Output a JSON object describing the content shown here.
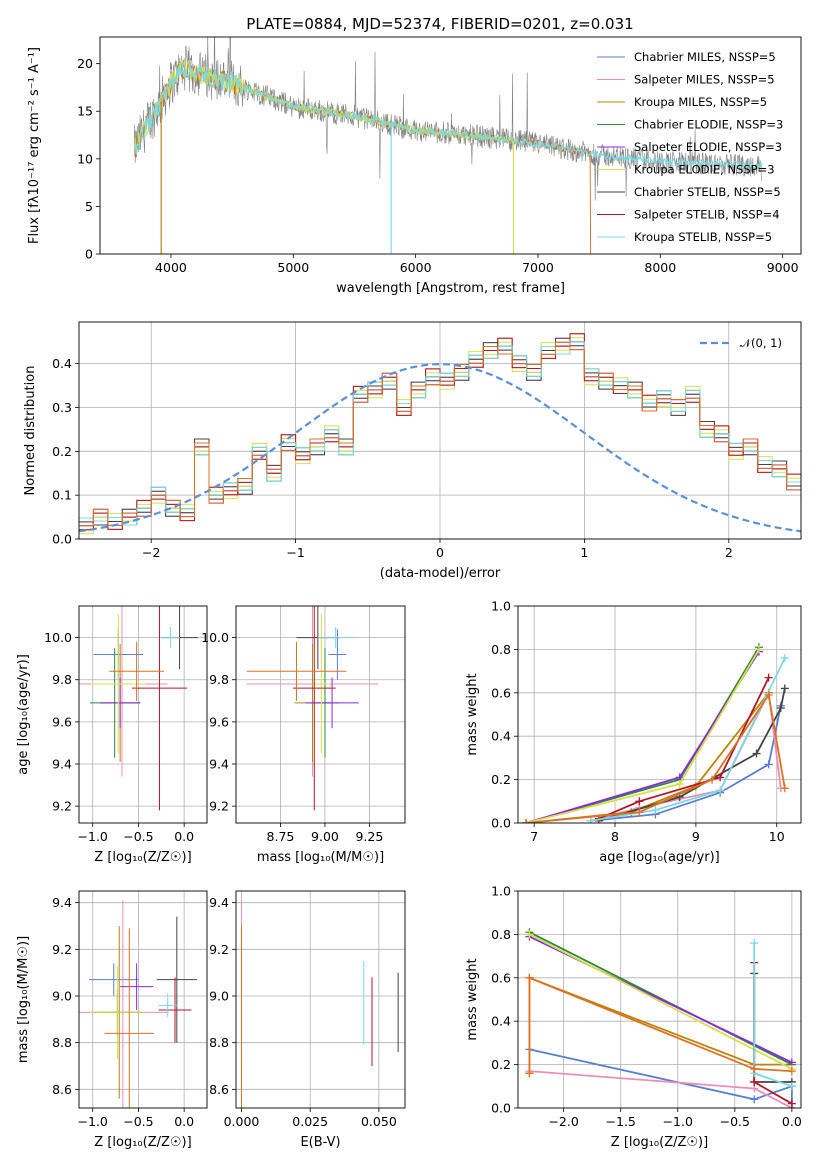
{
  "figure_title": "PLATE=0884, MJD=52374, FIBERID=0201, z=0.031",
  "colors": {
    "Chabrier MILES": "#5a7fd0",
    "Salpeter MILES": "#e88fb9",
    "Kroupa MILES": "#b8860b",
    "Chabrier ELODIE": "#2e8b3a",
    "Salpeter ELODIE": "#8a2be2",
    "Kroupa ELODIE": "#d4e04a",
    "Chabrier STELIB": "#444444",
    "Salpeter STELIB": "#b2182b",
    "Kroupa STELIB": "#7fd8e0",
    "orange": "#e07020",
    "data": "#808080",
    "model": "#d2691e",
    "gaussian": "#5b8fd6",
    "grid": "#b0b0b0"
  },
  "chart_data": [
    {
      "id": "spectrum",
      "type": "line",
      "xlabel": "wavelength [Angstrom, rest frame]",
      "ylabel": "Flux [fλ10⁻¹⁷ erg cm⁻² s⁻¹ A⁻¹]",
      "xlim": [
        3420,
        9150
      ],
      "ylim": [
        0,
        22.8
      ],
      "xticks": [
        4000,
        5000,
        6000,
        7000,
        8000,
        9000
      ],
      "yticks": [
        0,
        5,
        10,
        15,
        20
      ],
      "grid": false,
      "legend_position": "top-right",
      "legend": [
        "Chabrier MILES, N_SSP=5",
        "Salpeter MILES, N_SSP=5",
        "Kroupa MILES, N_SSP=5",
        "Chabrier ELODIE, N_SSP=3",
        "Salpeter ELODIE, N_SSP=3",
        "Kroupa ELODIE, N_SSP=3",
        "Chabrier STELIB, N_SSP=5",
        "Salpeter STELIB, N_SSP=4",
        "Kroupa STELIB, N_SSP=5"
      ],
      "continuum": [
        [
          3700,
          11.0
        ],
        [
          3800,
          13.5
        ],
        [
          3900,
          15.5
        ],
        [
          4000,
          18.0
        ],
        [
          4100,
          19.5
        ],
        [
          4300,
          18.6
        ],
        [
          4500,
          18.0
        ],
        [
          4700,
          17.0
        ],
        [
          5000,
          15.5
        ],
        [
          5500,
          14.5
        ],
        [
          6000,
          13.0
        ],
        [
          6500,
          12.4
        ],
        [
          7000,
          11.6
        ],
        [
          7500,
          10.4
        ],
        [
          8000,
          9.7
        ],
        [
          8500,
          9.4
        ],
        [
          8800,
          9.3
        ]
      ],
      "model_range": [
        3700,
        7430
      ],
      "data_range": [
        3700,
        8830
      ]
    },
    {
      "id": "residuals",
      "type": "bar",
      "xlabel": "(data-model)/error",
      "ylabel": "Normed distribution",
      "xlim": [
        -2.5,
        2.5
      ],
      "ylim": [
        0,
        0.495
      ],
      "xticks": [
        -2,
        -1,
        0,
        1,
        2
      ],
      "yticks": [
        0.0,
        0.1,
        0.2,
        0.3,
        0.4
      ],
      "grid": true,
      "legend_position": "top-right",
      "legend": [
        "𝒩(0, 1)"
      ],
      "bin_width": 0.1,
      "x_start": -2.5,
      "hist_values": [
        0.03,
        0.05,
        0.04,
        0.05,
        0.07,
        0.1,
        0.07,
        0.06,
        0.21,
        0.1,
        0.11,
        0.12,
        0.2,
        0.15,
        0.22,
        0.19,
        0.21,
        0.24,
        0.21,
        0.33,
        0.34,
        0.36,
        0.3,
        0.34,
        0.37,
        0.36,
        0.38,
        0.41,
        0.43,
        0.44,
        0.4,
        0.38,
        0.43,
        0.44,
        0.45,
        0.37,
        0.36,
        0.35,
        0.34,
        0.31,
        0.32,
        0.3,
        0.33,
        0.25,
        0.24,
        0.2,
        0.21,
        0.17,
        0.16,
        0.13,
        0.1,
        0.12,
        0.1,
        0.09,
        0.06,
        0.05,
        0.04,
        0.03,
        0.04,
        0.02
      ],
      "gaussian": {
        "mean": 0,
        "sigma": 1
      }
    },
    {
      "id": "age_vs_Z",
      "type": "scatter",
      "xlabel": "Z [log₁₀(Z/Z☉)]",
      "ylabel": "age  [log₁₀(age/yr)]",
      "xlim": [
        -1.15,
        0.25
      ],
      "ylim": [
        9.12,
        10.15
      ],
      "xticks": [
        -1.0,
        -0.5,
        0.0
      ],
      "yticks": [
        9.2,
        9.4,
        9.6,
        9.8,
        10.0
      ],
      "grid": true,
      "points": [
        {
          "x": -0.72,
          "y": 9.92,
          "ex": 0.27,
          "ey": 0.12,
          "series": "Chabrier MILES"
        },
        {
          "x": -0.68,
          "y": 9.78,
          "ex": 0.5,
          "ey": 0.44,
          "series": "Salpeter MILES"
        },
        {
          "x": -0.7,
          "y": 9.69,
          "ex": 0.22,
          "ey": 0.28,
          "series": "Kroupa MILES"
        },
        {
          "x": -0.76,
          "y": 9.69,
          "ex": 0.27,
          "ey": 0.26,
          "series": "Chabrier ELODIE"
        },
        {
          "x": -0.7,
          "y": 9.69,
          "ex": 0.22,
          "ey": 0.12,
          "series": "Salpeter ELODIE"
        },
        {
          "x": -0.72,
          "y": 9.78,
          "ex": 0.3,
          "ey": 0.33,
          "series": "Kroupa ELODIE"
        },
        {
          "x": -0.05,
          "y": 10.0,
          "ex": 0.2,
          "ey": 0.15,
          "series": "Chabrier STELIB"
        },
        {
          "x": -0.27,
          "y": 9.76,
          "ex": 0.3,
          "ey": 0.58,
          "series": "Salpeter STELIB"
        },
        {
          "x": -0.15,
          "y": 10.0,
          "ex": 0.1,
          "ey": 0.05,
          "series": "Kroupa STELIB"
        },
        {
          "x": -0.52,
          "y": 9.84,
          "ex": 0.3,
          "ey": 0.14,
          "series": "orange"
        }
      ]
    },
    {
      "id": "age_vs_mass",
      "type": "scatter",
      "xlabel": "mass [log₁₀(M/M☉)]",
      "ylabel": "",
      "xlim": [
        8.5,
        9.45
      ],
      "ylim": [
        9.12,
        10.15
      ],
      "xticks": [
        8.75,
        9.0,
        9.25
      ],
      "yticks": [
        9.2,
        9.4,
        9.6,
        9.8,
        10.0
      ],
      "grid": true,
      "points": [
        {
          "x": 9.07,
          "y": 9.92,
          "ex": 0.05,
          "ey": 0.12,
          "series": "Chabrier MILES"
        },
        {
          "x": 8.93,
          "y": 9.78,
          "ex": 0.37,
          "ey": 0.44,
          "series": "Salpeter MILES"
        },
        {
          "x": 8.93,
          "y": 9.69,
          "ex": 0.1,
          "ey": 0.28,
          "series": "Kroupa MILES"
        },
        {
          "x": 9.0,
          "y": 9.69,
          "ex": 0.08,
          "ey": 0.26,
          "series": "Chabrier ELODIE"
        },
        {
          "x": 9.04,
          "y": 9.69,
          "ex": 0.15,
          "ey": 0.12,
          "series": "Salpeter ELODIE"
        },
        {
          "x": 8.98,
          "y": 9.78,
          "ex": 0.05,
          "ey": 0.33,
          "series": "Kroupa ELODIE"
        },
        {
          "x": 8.96,
          "y": 10.0,
          "ex": 0.12,
          "ey": 0.15,
          "series": "Chabrier STELIB"
        },
        {
          "x": 8.94,
          "y": 9.76,
          "ex": 0.12,
          "ey": 0.58,
          "series": "Salpeter STELIB"
        },
        {
          "x": 9.06,
          "y": 10.0,
          "ex": 0.1,
          "ey": 0.05,
          "series": "Kroupa STELIB"
        },
        {
          "x": 8.84,
          "y": 9.84,
          "ex": 0.28,
          "ey": 0.14,
          "series": "orange"
        }
      ]
    },
    {
      "id": "massweight_vs_age",
      "type": "line",
      "xlabel": "age  [log₁₀(age/yr)]",
      "ylabel": "mass weight",
      "xlim": [
        6.8,
        10.3
      ],
      "ylim": [
        0.0,
        1.0
      ],
      "xticks": [
        7,
        8,
        9,
        10
      ],
      "yticks": [
        0.0,
        0.2,
        0.4,
        0.6,
        0.8,
        1.0
      ],
      "grid": true,
      "series": [
        {
          "name": "Chabrier MILES",
          "x": [
            7.7,
            8.5,
            9.3,
            9.9,
            10.05
          ],
          "y": [
            0.01,
            0.04,
            0.14,
            0.27,
            0.54
          ]
        },
        {
          "name": "Salpeter MILES",
          "x": [
            7.7,
            8.3,
            9.3,
            9.9,
            10.05
          ],
          "y": [
            0.01,
            0.07,
            0.15,
            0.6,
            0.16
          ]
        },
        {
          "name": "Kroupa MILES",
          "x": [
            6.9,
            8.2,
            9.0,
            9.9
          ],
          "y": [
            0.0,
            0.05,
            0.17,
            0.6
          ]
        },
        {
          "name": "Chabrier ELODIE",
          "x": [
            6.9,
            8.8,
            9.78
          ],
          "y": [
            0.0,
            0.2,
            0.81
          ]
        },
        {
          "name": "Salpeter ELODIE",
          "x": [
            6.9,
            8.8,
            9.78
          ],
          "y": [
            0.0,
            0.21,
            0.79
          ]
        },
        {
          "name": "Kroupa ELODIE",
          "x": [
            6.9,
            8.8,
            9.78
          ],
          "y": [
            0.0,
            0.18,
            0.8
          ]
        },
        {
          "name": "Chabrier STELIB",
          "x": [
            7.8,
            8.8,
            9.75,
            10.05,
            10.1
          ],
          "y": [
            0.01,
            0.12,
            0.32,
            0.53,
            0.62
          ]
        },
        {
          "name": "Salpeter STELIB",
          "x": [
            7.8,
            8.3,
            9.3,
            9.9
          ],
          "y": [
            0.02,
            0.1,
            0.21,
            0.67
          ]
        },
        {
          "name": "Kroupa STELIB",
          "x": [
            7.7,
            8.5,
            9.3,
            10.1
          ],
          "y": [
            0.01,
            0.06,
            0.15,
            0.76
          ]
        },
        {
          "name": "orange",
          "x": [
            6.9,
            8.3,
            9.2,
            9.9,
            10.1
          ],
          "y": [
            0.0,
            0.05,
            0.2,
            0.59,
            0.16
          ]
        }
      ]
    },
    {
      "id": "mass_vs_Z",
      "type": "scatter",
      "xlabel": "Z [log₁₀(Z/Z☉)]",
      "ylabel": "mass [log₁₀(M/M☉)]",
      "xlim": [
        -1.15,
        0.25
      ],
      "ylim": [
        8.52,
        9.45
      ],
      "xticks": [
        -1.0,
        -0.5,
        0.0
      ],
      "yticks": [
        8.6,
        8.8,
        9.0,
        9.2,
        9.4
      ],
      "grid": true,
      "points": [
        {
          "x": -0.77,
          "y": 9.07,
          "ex": 0.27,
          "ey": 0.07,
          "series": "Chabrier MILES"
        },
        {
          "x": -0.67,
          "y": 8.93,
          "ex": 0.5,
          "ey": 0.48,
          "series": "Salpeter MILES"
        },
        {
          "x": -0.71,
          "y": 8.93,
          "ex": 0.22,
          "ey": 0.37,
          "series": "Kroupa MILES"
        },
        {
          "x": -0.73,
          "y": 8.93,
          "ex": 0.27,
          "ey": 0.1,
          "series": "Chabrier ELODIE"
        },
        {
          "x": -0.52,
          "y": 9.04,
          "ex": 0.18,
          "ey": 0.1,
          "series": "Salpeter ELODIE"
        },
        {
          "x": -0.73,
          "y": 8.93,
          "ex": 0.3,
          "ey": 0.2,
          "series": "Kroupa ELODIE"
        },
        {
          "x": -0.08,
          "y": 9.07,
          "ex": 0.22,
          "ey": 0.27,
          "series": "Chabrier STELIB"
        },
        {
          "x": -0.1,
          "y": 8.94,
          "ex": 0.18,
          "ey": 0.14,
          "series": "Salpeter STELIB"
        },
        {
          "x": -0.18,
          "y": 8.96,
          "ex": 0.1,
          "ey": 0.05,
          "series": "Kroupa STELIB"
        },
        {
          "x": -0.6,
          "y": 8.84,
          "ex": 0.27,
          "ey": 0.45,
          "series": "orange"
        }
      ]
    },
    {
      "id": "mass_vs_EBV",
      "type": "scatter",
      "xlabel": "E(B-V)",
      "ylabel": "",
      "xlim": [
        -0.002,
        0.0595
      ],
      "ylim": [
        8.52,
        9.45
      ],
      "xticks": [
        0.0,
        0.025,
        0.05
      ],
      "xticklabels": [
        "0.000",
        "0.025",
        "0.050"
      ],
      "yticks": [
        8.6,
        8.8,
        9.0,
        9.2,
        9.4
      ],
      "grid": true,
      "points": [
        {
          "x": 0.0,
          "y": 9.07,
          "ey": 0.07,
          "series": "Chabrier MILES"
        },
        {
          "x": 0.0,
          "y": 9.05,
          "ey": 0.36,
          "series": "Salpeter MILES"
        },
        {
          "x": 0.0,
          "y": 8.93,
          "ey": 0.37,
          "series": "Kroupa MILES"
        },
        {
          "x": 0.0,
          "y": 8.93,
          "ey": 0.1,
          "series": "Chabrier ELODIE"
        },
        {
          "x": 0.0,
          "y": 9.04,
          "ey": 0.1,
          "series": "Salpeter ELODIE"
        },
        {
          "x": 0.0,
          "y": 8.93,
          "ey": 0.2,
          "series": "Kroupa ELODIE"
        },
        {
          "x": 0.057,
          "y": 8.93,
          "ey": 0.17,
          "series": "Chabrier STELIB"
        },
        {
          "x": 0.0475,
          "y": 8.89,
          "ey": 0.19,
          "series": "Salpeter STELIB"
        },
        {
          "x": 0.0445,
          "y": 8.97,
          "ey": 0.18,
          "series": "Kroupa STELIB"
        },
        {
          "x": 0.0,
          "y": 8.84,
          "ey": 0.45,
          "series": "orange"
        }
      ]
    },
    {
      "id": "massweight_vs_Z",
      "type": "line",
      "xlabel": "Z [log₁₀(Z/Z☉)]",
      "ylabel": "mass weight",
      "xlim": [
        -2.4,
        0.08
      ],
      "ylim": [
        0.0,
        1.0
      ],
      "xticks": [
        -2.0,
        -1.5,
        -1.0,
        -0.5,
        0.0
      ],
      "yticks": [
        0.0,
        0.2,
        0.4,
        0.6,
        0.8,
        1.0
      ],
      "grid": true,
      "series": [
        {
          "name": "Chabrier MILES",
          "x": [
            -2.3,
            -0.33,
            0.0,
            0.0
          ],
          "y": [
            0.27,
            0.04,
            0.1,
            0.0
          ]
        },
        {
          "name": "Salpeter MILES",
          "x": [
            -2.3,
            -0.33,
            0.0
          ],
          "y": [
            0.17,
            0.09,
            0.0
          ]
        },
        {
          "name": "Kroupa MILES",
          "x": [
            -2.3,
            -2.3,
            -0.33,
            0.0
          ],
          "y": [
            0.16,
            0.6,
            0.2,
            0.2
          ]
        },
        {
          "name": "Chabrier ELODIE",
          "x": [
            -2.3,
            0.0
          ],
          "y": [
            0.81,
            0.2
          ]
        },
        {
          "name": "Salpeter ELODIE",
          "x": [
            -2.3,
            0.0
          ],
          "y": [
            0.79,
            0.21
          ]
        },
        {
          "name": "Kroupa ELODIE",
          "x": [
            -2.3,
            0.0
          ],
          "y": [
            0.8,
            0.18
          ]
        },
        {
          "name": "Chabrier STELIB",
          "x": [
            -0.33,
            -0.33,
            0.0
          ],
          "y": [
            0.62,
            0.12,
            0.12
          ]
        },
        {
          "name": "Salpeter STELIB",
          "x": [
            -0.33,
            -0.33,
            0.0
          ],
          "y": [
            0.67,
            0.12,
            0.02
          ]
        },
        {
          "name": "Kroupa STELIB",
          "x": [
            -0.33,
            -0.33,
            0.0
          ],
          "y": [
            0.76,
            0.16,
            0.1
          ]
        },
        {
          "name": "orange",
          "x": [
            -2.3,
            -2.3,
            -0.33,
            0.0
          ],
          "y": [
            0.16,
            0.6,
            0.18,
            0.17
          ]
        }
      ]
    }
  ]
}
